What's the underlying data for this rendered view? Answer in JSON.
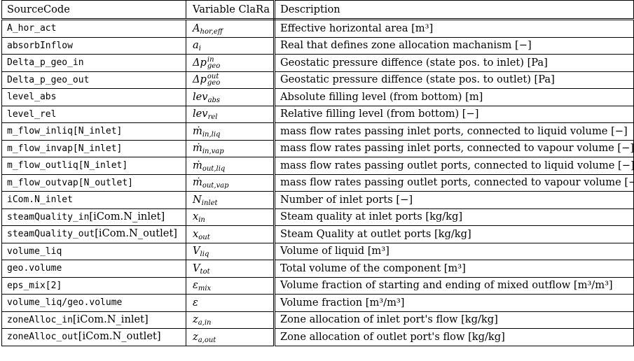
{
  "headers": [
    "SourceCode",
    "Variable ClaRa",
    "Description"
  ],
  "rows": [
    {
      "code": "A_hor_act",
      "code_extra": "",
      "var_base": "A",
      "var_sub": "hor,eff",
      "var_sup": "",
      "desc": "Effective horizontal area [m³]"
    },
    {
      "code": "absorbInflow",
      "code_extra": "",
      "var_base": "a",
      "var_sub": "i",
      "var_sup": "",
      "desc": "Real that defines zone allocation machanism [−]"
    },
    {
      "code": "Delta_p_geo_in",
      "code_extra": "",
      "var_base": "Δp",
      "var_sub": "geo",
      "var_sup": "in",
      "desc": "Geostatic pressure diffence (state pos. to inlet) [Pa]"
    },
    {
      "code": "Delta_p_geo_out",
      "code_extra": "",
      "var_base": "Δp",
      "var_sub": "geo",
      "var_sup": "out",
      "desc": "Geostatic pressure diffence (state pos. to outlet) [Pa]"
    },
    {
      "code": "level_abs",
      "code_extra": "",
      "var_base": "lev",
      "var_sub": "abs",
      "var_sup": "",
      "desc": "Absolute filling level (from bottom) [m]"
    },
    {
      "code": "level_rel",
      "code_extra": "",
      "var_base": "lev",
      "var_sub": "rel",
      "var_sup": "",
      "desc": "Relative filling level (from bottom) [−]"
    },
    {
      "code": "m_flow_inliq[N_inlet]",
      "code_extra": "",
      "var_base": "ṁ",
      "var_sub": "in,liq",
      "var_sup": "",
      "desc": "mass flow rates passing inlet ports, connected to liquid volume [−]"
    },
    {
      "code": "m_flow_invap[N_inlet]",
      "code_extra": "",
      "var_base": "ṁ",
      "var_sub": "in,vap",
      "var_sup": "",
      "desc": "mass flow rates passing inlet ports, connected to vapour volume [−]"
    },
    {
      "code": "m_flow_outliq[N_inlet]",
      "code_extra": "",
      "var_base": "ṁ",
      "var_sub": "out,liq",
      "var_sup": "",
      "desc": "mass flow rates passing outlet ports, connected to liquid volume [−]"
    },
    {
      "code": "m_flow_outvap[N_outlet]",
      "code_extra": "",
      "var_base": "ṁ",
      "var_sub": "out,vap",
      "var_sup": "",
      "desc": "mass flow rates passing outlet ports, connected to vapour volume [−]"
    },
    {
      "code": "iCom.N_inlet",
      "code_extra": "",
      "var_base": "N",
      "var_sub": "inlet",
      "var_sup": "",
      "desc": "Number of inlet ports [−]"
    },
    {
      "code": "steamQuality_in",
      "code_extra": "[iCom.N_inlet]",
      "var_base": "x",
      "var_sub": "in",
      "var_sup": "",
      "desc": "Steam quality at inlet ports [kg/kg]"
    },
    {
      "code": "steamQuality_out",
      "code_extra": "[iCom.N_outlet]",
      "var_base": "x",
      "var_sub": "out",
      "var_sup": "",
      "desc": "Steam Quality at outlet ports [kg/kg]"
    },
    {
      "code": "volume_liq",
      "code_extra": "",
      "var_base": "V",
      "var_sub": "liq",
      "var_sup": "",
      "desc": "Volume of liquid [m³]"
    },
    {
      "code": "geo.volume",
      "code_extra": "",
      "var_base": "V",
      "var_sub": "tot",
      "var_sup": "",
      "desc": "Total volume of the component [m³]"
    },
    {
      "code": "eps_mix[2]",
      "code_extra": "",
      "var_base": "ε",
      "var_sub": "mix",
      "var_sup": "",
      "desc": "Volume fraction of starting and ending of mixed outflow [m³/m³]"
    },
    {
      "code": "volume_liq/geo.volume",
      "code_extra": "",
      "var_base": "ε",
      "var_sub": "",
      "var_sup": "",
      "desc": "Volume fraction [m³/m³]"
    },
    {
      "code": "zoneAlloc_in",
      "code_extra": "[iCom.N_inlet]",
      "var_base": "z",
      "var_sub": "a,in",
      "var_sup": "",
      "desc": "Zone allocation of inlet port's flow [kg/kg]"
    },
    {
      "code": "zoneAlloc_out",
      "code_extra": "[iCom.N_outlet]",
      "var_base": "z",
      "var_sub": "a,out",
      "var_sup": "",
      "desc": "Zone allocation of outlet port's flow [kg/kg]"
    }
  ]
}
